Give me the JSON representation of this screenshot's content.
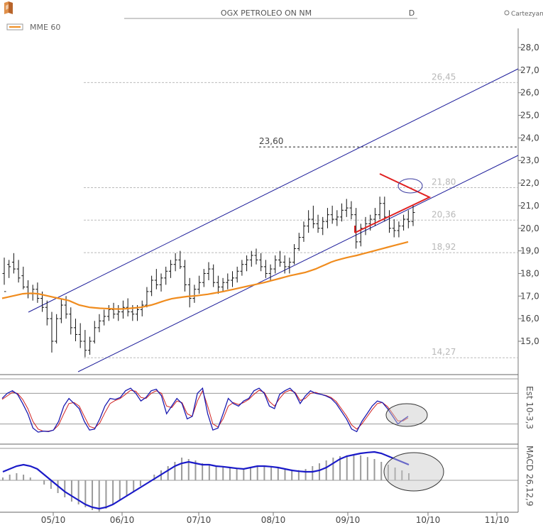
{
  "header": {
    "title": "OGX PETROLEO ON NM",
    "period": "D",
    "brand": "Cartezyan",
    "legend_label": "MME 60"
  },
  "chart_data": {
    "type": "candlestick",
    "title": "OGX PETROLEO ON NM",
    "y_ticks": [
      "15,0",
      "16,0",
      "17,0",
      "18,0",
      "19,0",
      "20,0",
      "21,0",
      "22,0",
      "23,0",
      "24,0",
      "25,0",
      "26,0",
      "27,0",
      "28,0"
    ],
    "ylim": [
      14.0,
      28.5
    ],
    "x_ticks": [
      "05/10",
      "06/10",
      "07/10",
      "08/10",
      "09/10",
      "10/10",
      "11/10"
    ],
    "levels": [
      {
        "value": 26.45,
        "label": "26,45",
        "style": "dashed-gray"
      },
      {
        "value": 23.6,
        "label": "23,60",
        "style": "dashed-black"
      },
      {
        "value": 21.8,
        "label": "21,80",
        "style": "dashed-gray"
      },
      {
        "value": 20.36,
        "label": "20,36",
        "style": "dashed-gray"
      },
      {
        "value": 18.92,
        "label": "18,92",
        "style": "dashed-gray"
      },
      {
        "value": 14.27,
        "label": "14,27",
        "style": "dashed-gray"
      }
    ],
    "series": [
      {
        "name": "MME 60",
        "type": "ema",
        "color": "#f08c1e"
      }
    ],
    "price_bars": [
      [
        18.0,
        18.7,
        17.5,
        17.2
      ],
      [
        18.4,
        18.6,
        17.8,
        18.3
      ],
      [
        18.5,
        18.9,
        18.0,
        18.2
      ],
      [
        18.2,
        18.6,
        17.6,
        17.8
      ],
      [
        17.9,
        18.3,
        17.3,
        17.4
      ],
      [
        17.4,
        17.7,
        16.9,
        17.1
      ],
      [
        17.1,
        17.5,
        16.8,
        17.3
      ],
      [
        17.3,
        17.6,
        16.7,
        16.9
      ],
      [
        16.9,
        17.2,
        16.3,
        16.5
      ],
      [
        16.5,
        16.8,
        15.7,
        16.0
      ],
      [
        16.0,
        16.3,
        14.5,
        15.0
      ],
      [
        15.0,
        16.2,
        14.9,
        16.0
      ],
      [
        16.0,
        16.9,
        15.8,
        16.6
      ],
      [
        16.6,
        17.0,
        16.0,
        16.2
      ],
      [
        16.2,
        16.5,
        15.3,
        15.6
      ],
      [
        15.6,
        16.0,
        15.0,
        15.3
      ],
      [
        15.3,
        15.8,
        14.7,
        15.0
      ],
      [
        15.0,
        15.5,
        14.3,
        14.6
      ],
      [
        14.6,
        15.2,
        14.4,
        15.0
      ],
      [
        15.0,
        15.9,
        14.9,
        15.6
      ],
      [
        15.6,
        16.2,
        15.4,
        15.9
      ],
      [
        15.9,
        16.4,
        15.7,
        16.1
      ],
      [
        16.1,
        16.6,
        15.9,
        16.4
      ],
      [
        16.4,
        16.7,
        16.0,
        16.2
      ],
      [
        16.2,
        16.6,
        15.9,
        16.3
      ],
      [
        16.3,
        16.8,
        16.0,
        16.5
      ],
      [
        16.5,
        16.9,
        16.1,
        16.3
      ],
      [
        16.3,
        16.6,
        15.9,
        16.2
      ],
      [
        16.2,
        16.6,
        15.9,
        16.4
      ],
      [
        16.4,
        16.8,
        16.1,
        16.6
      ],
      [
        16.6,
        17.4,
        16.5,
        17.2
      ],
      [
        17.2,
        17.9,
        17.0,
        17.7
      ],
      [
        17.7,
        18.2,
        17.3,
        17.5
      ],
      [
        17.5,
        18.0,
        17.2,
        17.8
      ],
      [
        17.8,
        18.3,
        17.5,
        18.1
      ],
      [
        18.1,
        18.6,
        17.8,
        18.4
      ],
      [
        18.4,
        18.9,
        18.1,
        18.6
      ],
      [
        18.6,
        19.0,
        18.2,
        18.3
      ],
      [
        18.3,
        18.6,
        17.2,
        17.5
      ],
      [
        17.5,
        17.8,
        16.5,
        16.9
      ],
      [
        16.9,
        17.5,
        16.7,
        17.3
      ],
      [
        17.3,
        17.9,
        17.1,
        17.6
      ],
      [
        17.6,
        18.2,
        17.4,
        18.0
      ],
      [
        18.0,
        18.5,
        17.7,
        18.2
      ],
      [
        18.2,
        18.4,
        17.4,
        17.6
      ],
      [
        17.6,
        17.9,
        17.1,
        17.4
      ],
      [
        17.4,
        17.8,
        17.2,
        17.6
      ],
      [
        17.6,
        18.0,
        17.3,
        17.7
      ],
      [
        17.7,
        18.1,
        17.4,
        17.8
      ],
      [
        17.8,
        18.3,
        17.6,
        18.1
      ],
      [
        18.1,
        18.6,
        17.9,
        18.4
      ],
      [
        18.4,
        18.8,
        18.1,
        18.6
      ],
      [
        18.6,
        19.0,
        18.3,
        18.8
      ],
      [
        18.8,
        19.1,
        18.4,
        18.6
      ],
      [
        18.6,
        18.9,
        18.1,
        18.3
      ],
      [
        18.3,
        18.6,
        17.8,
        18.0
      ],
      [
        18.0,
        18.4,
        17.7,
        18.2
      ],
      [
        18.2,
        18.8,
        18.0,
        18.6
      ],
      [
        18.6,
        19.0,
        18.3,
        18.5
      ],
      [
        18.5,
        18.8,
        18.0,
        18.3
      ],
      [
        18.3,
        18.7,
        18.0,
        18.5
      ],
      [
        18.5,
        19.3,
        18.4,
        19.1
      ],
      [
        19.1,
        19.8,
        19.0,
        19.6
      ],
      [
        19.6,
        20.3,
        19.4,
        20.1
      ],
      [
        20.1,
        20.8,
        19.8,
        20.4
      ],
      [
        20.4,
        21.0,
        20.0,
        20.2
      ],
      [
        20.2,
        20.6,
        19.8,
        20.0
      ],
      [
        20.0,
        20.5,
        19.7,
        20.3
      ],
      [
        20.3,
        20.9,
        20.0,
        20.6
      ],
      [
        20.6,
        21.0,
        20.2,
        20.4
      ],
      [
        20.4,
        20.8,
        20.1,
        20.5
      ],
      [
        20.5,
        21.1,
        20.3,
        20.8
      ],
      [
        20.8,
        21.3,
        20.5,
        20.9
      ],
      [
        20.9,
        21.2,
        20.4,
        20.6
      ],
      [
        20.6,
        20.9,
        19.1,
        19.4
      ],
      [
        19.4,
        20.2,
        19.2,
        20.0
      ],
      [
        20.0,
        20.5,
        19.7,
        20.2
      ],
      [
        20.2,
        20.6,
        19.9,
        20.4
      ],
      [
        20.4,
        20.9,
        20.1,
        20.6
      ],
      [
        20.6,
        21.4,
        20.4,
        21.1
      ],
      [
        21.1,
        21.4,
        20.3,
        20.5
      ],
      [
        20.5,
        20.8,
        19.8,
        20.0
      ],
      [
        20.0,
        20.4,
        19.6,
        19.9
      ],
      [
        19.9,
        20.3,
        19.6,
        20.1
      ],
      [
        20.1,
        20.6,
        19.9,
        20.4
      ],
      [
        20.4,
        20.8,
        20.0,
        20.3
      ],
      [
        20.3,
        21.0,
        20.1,
        20.7
      ]
    ],
    "ema": [
      16.9,
      16.95,
      17.0,
      17.05,
      17.1,
      17.12,
      17.12,
      17.1,
      17.05,
      17.0,
      16.95,
      16.9,
      16.85,
      16.8,
      16.7,
      16.6,
      16.55,
      16.5,
      16.48,
      16.46,
      16.45,
      16.44,
      16.43,
      16.43,
      16.44,
      16.46,
      16.48,
      16.5,
      16.55,
      16.6,
      16.67,
      16.75,
      16.82,
      16.88,
      16.92,
      16.95,
      16.98,
      17.0,
      17.02,
      17.05,
      17.08,
      17.12,
      17.16,
      17.2,
      17.25,
      17.3,
      17.35,
      17.4,
      17.45,
      17.5,
      17.55,
      17.6,
      17.66,
      17.72,
      17.78,
      17.84,
      17.9,
      17.95,
      18.0,
      18.05,
      18.12,
      18.2,
      18.3,
      18.4,
      18.5,
      18.58,
      18.64,
      18.7,
      18.75,
      18.8,
      18.86,
      18.92,
      18.98,
      19.04,
      19.1,
      19.16,
      19.22,
      19.28,
      19.34,
      19.4
    ],
    "channel": [
      {
        "from": [
          "03/05",
          16.0
        ],
        "to": [
          "27/10",
          26.6
        ],
        "color": "#1c1c9a"
      },
      {
        "from": [
          "26/05",
          14.1
        ],
        "to": [
          "27/10",
          22.3
        ],
        "color": "#1c1c9a"
      }
    ],
    "triangle": {
      "color": "#e02020",
      "points": [
        [
          20.4,
          21.45
        ],
        [
          20.4,
          19.0
        ],
        [
          21.1,
          20.36
        ]
      ]
    },
    "stochastic": {
      "label": "Est 10-3,3",
      "k": [
        70,
        80,
        85,
        78,
        60,
        40,
        12,
        4,
        6,
        5,
        8,
        25,
        55,
        70,
        60,
        50,
        25,
        8,
        10,
        30,
        55,
        70,
        68,
        72,
        85,
        90,
        80,
        65,
        72,
        85,
        88,
        75,
        40,
        55,
        70,
        60,
        30,
        35,
        80,
        90,
        40,
        8,
        12,
        40,
        70,
        60,
        55,
        65,
        70,
        85,
        90,
        80,
        55,
        50,
        78,
        85,
        90,
        80,
        60,
        75,
        85,
        80,
        78,
        75,
        70,
        60,
        45,
        30,
        10,
        5,
        25,
        40,
        55,
        65,
        62,
        50,
        35,
        20,
        28,
        35
      ],
      "d": [
        68,
        75,
        82,
        80,
        68,
        50,
        25,
        10,
        6,
        6,
        8,
        18,
        40,
        60,
        62,
        55,
        35,
        15,
        12,
        22,
        42,
        60,
        66,
        70,
        78,
        86,
        84,
        72,
        70,
        80,
        85,
        80,
        55,
        52,
        65,
        62,
        40,
        35,
        65,
        85,
        55,
        20,
        14,
        30,
        55,
        62,
        58,
        62,
        68,
        78,
        86,
        82,
        64,
        55,
        70,
        82,
        86,
        82,
        66,
        70,
        80,
        82,
        78,
        76,
        72,
        64,
        50,
        36,
        18,
        10,
        20,
        34,
        48,
        60,
        62,
        54,
        40,
        26,
        26,
        32
      ]
    },
    "macd": {
      "label": "MACD 26,12,9",
      "line": [
        0.3,
        0.4,
        0.5,
        0.55,
        0.5,
        0.4,
        0.2,
        0.0,
        -0.2,
        -0.4,
        -0.55,
        -0.7,
        -0.85,
        -0.95,
        -1.0,
        -0.95,
        -0.85,
        -0.7,
        -0.55,
        -0.4,
        -0.25,
        -0.1,
        0.05,
        0.2,
        0.35,
        0.5,
        0.6,
        0.65,
        0.6,
        0.55,
        0.55,
        0.5,
        0.48,
        0.45,
        0.42,
        0.4,
        0.45,
        0.5,
        0.5,
        0.48,
        0.45,
        0.4,
        0.35,
        0.32,
        0.3,
        0.3,
        0.35,
        0.45,
        0.6,
        0.75,
        0.85,
        0.9,
        0.95,
        0.98,
        1.0,
        0.95,
        0.85,
        0.75,
        0.65,
        0.55
      ],
      "histogram": [
        0.1,
        0.2,
        0.25,
        0.2,
        0.1,
        0.0,
        -0.15,
        -0.3,
        -0.45,
        -0.6,
        -0.75,
        -0.85,
        -0.95,
        -1.05,
        -1.1,
        -1.0,
        -0.85,
        -0.7,
        -0.55,
        -0.4,
        -0.2,
        0.0,
        0.2,
        0.35,
        0.5,
        0.65,
        0.8,
        0.75,
        0.7,
        0.6,
        0.55,
        0.5,
        0.48,
        0.46,
        0.44,
        0.42,
        0.46,
        0.5,
        0.52,
        0.5,
        0.46,
        0.42,
        0.38,
        0.36,
        0.4,
        0.5,
        0.6,
        0.7,
        0.8,
        0.85,
        0.88,
        0.9,
        0.88,
        0.82,
        0.75,
        0.65,
        0.55,
        0.45,
        0.35,
        0.25
      ]
    }
  }
}
